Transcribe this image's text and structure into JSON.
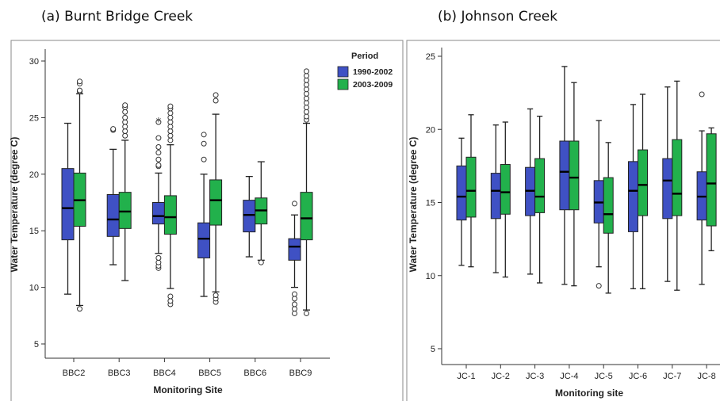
{
  "colors": {
    "period1": "#3f51c4",
    "period2": "#22b14c",
    "axis": "#333333",
    "frame": "#777777"
  },
  "chart_data": [
    {
      "type": "boxplot",
      "title": "(a) Burnt Bridge Creek",
      "xlabel": "Monitoring Site",
      "ylabel": "Water Temperature (degree C)",
      "ylim": [
        3,
        31
      ],
      "yticks": [
        5,
        10,
        15,
        20,
        25,
        30
      ],
      "categories": [
        "BBC2",
        "BBC3",
        "BBC4",
        "BBC5",
        "BBC6",
        "BBC9"
      ],
      "legend": {
        "title": "Period",
        "position": "top-right",
        "entries": [
          "1990-2002",
          "2003-2009"
        ]
      },
      "series": [
        {
          "name": "1990-2002",
          "color": "#3f51c4",
          "boxes": [
            {
              "whisker_low": 9.4,
              "q1": 14.2,
              "median": 17.0,
              "q3": 20.5,
              "whisker_high": 24.5,
              "outliers": []
            },
            {
              "whisker_low": 12.0,
              "q1": 14.5,
              "median": 16.0,
              "q3": 18.2,
              "whisker_high": 22.2,
              "outliers": [
                23.9,
                24.0
              ]
            },
            {
              "whisker_low": 13.0,
              "q1": 15.6,
              "median": 16.3,
              "q3": 17.5,
              "whisker_high": 20.1,
              "outliers": [
                11.7,
                11.9,
                12.2,
                12.6,
                20.7,
                20.8,
                21.3,
                21.9,
                22.4,
                23.2,
                24.6
              ]
            },
            {
              "whisker_low": 9.2,
              "q1": 12.6,
              "median": 14.3,
              "q3": 15.7,
              "whisker_high": 20.0,
              "outliers": [
                21.3,
                22.7,
                23.5
              ]
            },
            {
              "whisker_low": 12.7,
              "q1": 14.9,
              "median": 16.4,
              "q3": 17.7,
              "whisker_high": 19.8,
              "outliers": []
            },
            {
              "whisker_low": 10.0,
              "q1": 12.4,
              "median": 13.6,
              "q3": 14.3,
              "whisker_high": 16.4,
              "outliers": [
                7.7,
                8.1,
                8.5,
                9.0,
                9.4,
                17.4
              ]
            }
          ]
        },
        {
          "name": "2003-2009",
          "color": "#22b14c",
          "boxes": [
            {
              "whisker_low": 8.4,
              "q1": 15.4,
              "median": 17.7,
              "q3": 20.1,
              "whisker_high": 27.1,
              "outliers": [
                8.1,
                27.3,
                27.4,
                28.0,
                28.2
              ]
            },
            {
              "whisker_low": 10.6,
              "q1": 15.2,
              "median": 16.7,
              "q3": 18.4,
              "whisker_high": 23.0,
              "outliers": [
                23.4,
                23.8,
                24.2,
                24.6,
                25.0,
                25.5,
                25.9,
                26.1
              ]
            },
            {
              "whisker_low": 9.9,
              "q1": 14.7,
              "median": 16.2,
              "q3": 18.1,
              "whisker_high": 22.6,
              "outliers": [
                8.5,
                8.8,
                9.2,
                23.0,
                23.4,
                23.8,
                24.2,
                24.6,
                25.0,
                25.4,
                25.8,
                26.0
              ]
            },
            {
              "whisker_low": 9.6,
              "q1": 15.5,
              "median": 17.7,
              "q3": 19.5,
              "whisker_high": 25.3,
              "outliers": [
                8.7,
                9.0,
                9.3,
                26.5,
                27.0
              ]
            },
            {
              "whisker_low": 12.4,
              "q1": 15.6,
              "median": 16.8,
              "q3": 17.9,
              "whisker_high": 21.1,
              "outliers": [
                12.2
              ]
            },
            {
              "whisker_low": 8.0,
              "q1": 14.2,
              "median": 16.1,
              "q3": 18.4,
              "whisker_high": 24.5,
              "outliers": [
                7.7,
                24.8,
                25.1,
                25.5,
                25.9,
                26.3,
                26.7,
                27.1,
                27.5,
                27.9,
                28.3,
                28.7,
                29.1
              ]
            }
          ]
        }
      ],
      "annotations": [
        {
          "text": "*",
          "category": "BBC4",
          "series": "1990-2002",
          "y": 24.8
        }
      ]
    },
    {
      "type": "boxplot",
      "title": "(b) Johnson Creek",
      "xlabel": "Monitoring site",
      "ylabel": "Water Temperature (degree C)",
      "ylim": [
        3,
        26
      ],
      "yticks": [
        5,
        10,
        15,
        20,
        25
      ],
      "categories": [
        "JC-1",
        "JC-2",
        "JC-3",
        "JC-4",
        "JC-5",
        "JC-6",
        "JC-7",
        "JC-8"
      ],
      "series": [
        {
          "name": "1990-2002",
          "color": "#3f51c4",
          "boxes": [
            {
              "whisker_low": 10.7,
              "q1": 13.8,
              "median": 15.4,
              "q3": 17.5,
              "whisker_high": 19.4,
              "outliers": []
            },
            {
              "whisker_low": 10.2,
              "q1": 13.9,
              "median": 15.8,
              "q3": 17.0,
              "whisker_high": 20.3,
              "outliers": []
            },
            {
              "whisker_low": 10.1,
              "q1": 14.1,
              "median": 15.8,
              "q3": 17.4,
              "whisker_high": 21.4,
              "outliers": []
            },
            {
              "whisker_low": 9.4,
              "q1": 14.5,
              "median": 17.1,
              "q3": 19.2,
              "whisker_high": 24.3,
              "outliers": []
            },
            {
              "whisker_low": 10.6,
              "q1": 13.6,
              "median": 15.0,
              "q3": 16.5,
              "whisker_high": 20.6,
              "outliers": [
                9.3
              ]
            },
            {
              "whisker_low": 9.1,
              "q1": 13.0,
              "median": 15.8,
              "q3": 17.8,
              "whisker_high": 21.7,
              "outliers": []
            },
            {
              "whisker_low": 9.6,
              "q1": 13.9,
              "median": 16.5,
              "q3": 18.0,
              "whisker_high": 22.9,
              "outliers": []
            },
            {
              "whisker_low": 9.4,
              "q1": 13.8,
              "median": 15.4,
              "q3": 17.1,
              "whisker_high": 19.9,
              "outliers": [
                22.4
              ]
            }
          ]
        },
        {
          "name": "2003-2009",
          "color": "#22b14c",
          "boxes": [
            {
              "whisker_low": 10.6,
              "q1": 14.0,
              "median": 15.8,
              "q3": 18.1,
              "whisker_high": 21.0,
              "outliers": []
            },
            {
              "whisker_low": 9.9,
              "q1": 14.2,
              "median": 15.7,
              "q3": 17.6,
              "whisker_high": 20.5,
              "outliers": []
            },
            {
              "whisker_low": 9.5,
              "q1": 14.3,
              "median": 15.4,
              "q3": 18.0,
              "whisker_high": 20.9,
              "outliers": []
            },
            {
              "whisker_low": 9.3,
              "q1": 14.5,
              "median": 16.7,
              "q3": 19.2,
              "whisker_high": 23.2,
              "outliers": []
            },
            {
              "whisker_low": 8.8,
              "q1": 12.9,
              "median": 14.2,
              "q3": 16.7,
              "whisker_high": 19.1,
              "outliers": []
            },
            {
              "whisker_low": 9.1,
              "q1": 14.1,
              "median": 16.2,
              "q3": 18.6,
              "whisker_high": 22.4,
              "outliers": []
            },
            {
              "whisker_low": 9.0,
              "q1": 14.1,
              "median": 15.6,
              "q3": 19.3,
              "whisker_high": 23.3,
              "outliers": []
            },
            {
              "whisker_low": 11.7,
              "q1": 13.4,
              "median": 16.3,
              "q3": 19.7,
              "whisker_high": 20.1,
              "outliers": []
            }
          ]
        }
      ]
    }
  ]
}
